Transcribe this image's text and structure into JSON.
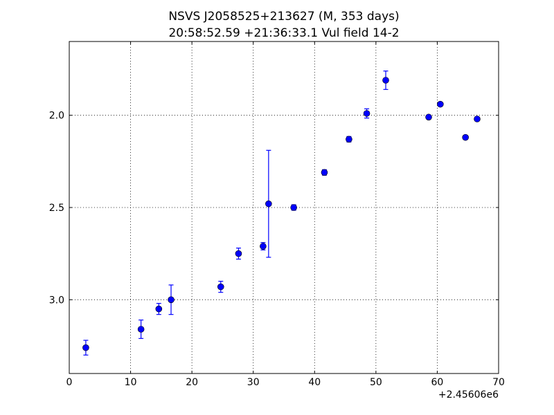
{
  "chart_data": {
    "type": "scatter",
    "title_line1": "NSVS J2058525+213627 (M, 353 days)",
    "title_line2": "20:58:52.59 +21:36:33.1 Vul field 14-2",
    "xlabel": "",
    "ylabel": "",
    "x_offset_label": "+2.45606e6",
    "xlim": [
      0,
      70
    ],
    "ylim": [
      3.4,
      1.6
    ],
    "y_inverted": true,
    "grid": true,
    "x_ticks": [
      0,
      10,
      20,
      30,
      40,
      50,
      60,
      70
    ],
    "x_tick_labels": [
      "0",
      "10",
      "20",
      "30",
      "40",
      "50",
      "60",
      "70"
    ],
    "y_ticks": [
      2.0,
      2.5,
      3.0
    ],
    "y_tick_labels": [
      "2.0",
      "2.5",
      "3.0"
    ],
    "marker_color": "#0000ff",
    "points": [
      {
        "x": 2.7,
        "y": 3.26,
        "err": 0.04
      },
      {
        "x": 11.7,
        "y": 3.16,
        "err": 0.05
      },
      {
        "x": 14.6,
        "y": 3.05,
        "err": 0.03
      },
      {
        "x": 16.6,
        "y": 3.0,
        "err": 0.08
      },
      {
        "x": 24.7,
        "y": 2.93,
        "err": 0.03
      },
      {
        "x": 27.6,
        "y": 2.75,
        "err": 0.03
      },
      {
        "x": 31.6,
        "y": 2.71,
        "err": 0.02
      },
      {
        "x": 32.5,
        "y": 2.48,
        "err": 0.29
      },
      {
        "x": 36.6,
        "y": 2.5,
        "err": 0.015
      },
      {
        "x": 41.6,
        "y": 2.31,
        "err": 0.015
      },
      {
        "x": 45.6,
        "y": 2.13,
        "err": 0.015
      },
      {
        "x": 48.5,
        "y": 1.99,
        "err": 0.025
      },
      {
        "x": 51.6,
        "y": 1.81,
        "err": 0.05
      },
      {
        "x": 58.6,
        "y": 2.01,
        "err": 0.01
      },
      {
        "x": 60.5,
        "y": 1.94,
        "err": 0.01
      },
      {
        "x": 64.6,
        "y": 2.12,
        "err": 0.01
      },
      {
        "x": 66.5,
        "y": 2.02,
        "err": 0.01
      }
    ]
  }
}
